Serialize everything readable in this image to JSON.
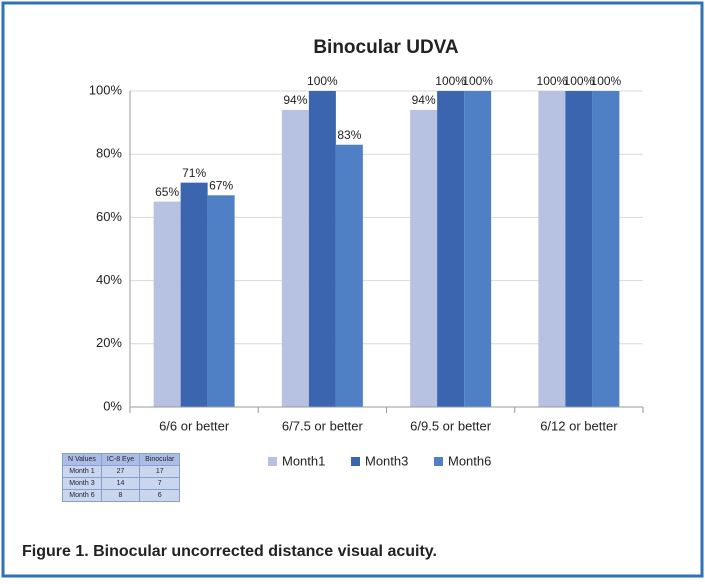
{
  "chart_data": {
    "type": "bar",
    "title": "Binocular UDVA",
    "categories": [
      "6/6 or better",
      "6/7.5  or better",
      "6/9.5 or better",
      "6/12 or better"
    ],
    "series": [
      {
        "name": "Month1",
        "color": "#b7c2e2",
        "values": [
          65,
          94,
          94,
          100
        ],
        "value_labels": [
          "65%",
          "94%",
          "94%",
          "100%"
        ]
      },
      {
        "name": "Month3",
        "color": "#3b65ae",
        "values": [
          71,
          100,
          100,
          100
        ],
        "value_labels": [
          "71%",
          "100%",
          "100%",
          "100%"
        ]
      },
      {
        "name": "Month6",
        "color": "#4f80c6",
        "values": [
          67,
          83,
          100,
          100
        ],
        "value_labels": [
          "67%",
          "83%",
          "100%",
          "100%"
        ]
      }
    ],
    "ylim": [
      0,
      100
    ],
    "yticks": [
      {
        "value": 0,
        "label": "0%"
      },
      {
        "value": 20,
        "label": "20%"
      },
      {
        "value": 40,
        "label": "40%"
      },
      {
        "value": 60,
        "label": "60%"
      },
      {
        "value": 80,
        "label": "80%"
      },
      {
        "value": 100,
        "label": "100%"
      }
    ],
    "grid": true
  },
  "table": {
    "header": [
      "N Values",
      "IC-8 Eye",
      "Binocular"
    ],
    "rows": [
      [
        "Month 1",
        "27",
        "17"
      ],
      [
        "Month 3",
        "14",
        "7"
      ],
      [
        "Month 6",
        "8",
        "6"
      ]
    ]
  },
  "caption": "Figure 1.  Binocular uncorrected distance visual acuity."
}
